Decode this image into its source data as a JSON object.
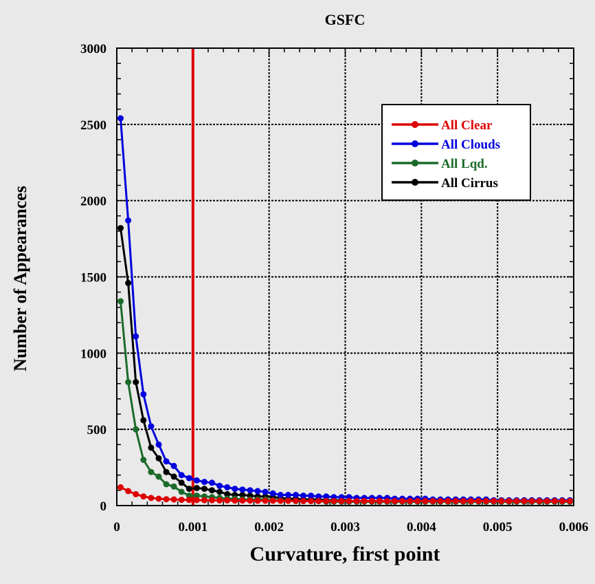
{
  "chart_data": {
    "type": "line",
    "title": "GSFC",
    "xlabel": "Curvature, first point",
    "ylabel": "Number of Appearances",
    "xlim": [
      0,
      0.006
    ],
    "ylim": [
      0,
      3000
    ],
    "x_ticks": [
      "0",
      "0.001",
      "0.002",
      "0.003",
      "0.004",
      "0.005",
      "0.006"
    ],
    "y_ticks": [
      "0",
      "500",
      "1000",
      "1500",
      "2000",
      "2500",
      "3000"
    ],
    "grid": true,
    "legend_position": "top-right",
    "threshold": {
      "x": 0.001,
      "color": "#dd0000"
    },
    "x": [
      5e-05,
      0.00015,
      0.00025,
      0.00035,
      0.00045,
      0.00055,
      0.00065,
      0.00075,
      0.00085,
      0.00095,
      0.00105,
      0.00115,
      0.00125,
      0.00135,
      0.00145,
      0.00155,
      0.00165,
      0.00175,
      0.00185,
      0.00195,
      0.00205,
      0.00215,
      0.00225,
      0.00235,
      0.00245,
      0.00255,
      0.00265,
      0.00275,
      0.00285,
      0.00295,
      0.00305,
      0.00315,
      0.00325,
      0.00335,
      0.00345,
      0.00355,
      0.00365,
      0.00375,
      0.00385,
      0.00395,
      0.00405,
      0.00415,
      0.00425,
      0.00435,
      0.00445,
      0.00455,
      0.00465,
      0.00475,
      0.00485,
      0.00495,
      0.00505,
      0.00515,
      0.00525,
      0.00535,
      0.00545,
      0.00555,
      0.00565,
      0.00575,
      0.00585,
      0.00595
    ],
    "series": [
      {
        "name": "All Clear",
        "color": "#dd0000",
        "values": [
          120,
          95,
          75,
          60,
          50,
          45,
          42,
          40,
          38,
          37,
          36,
          35,
          35,
          34,
          34,
          33,
          33,
          33,
          32,
          32,
          32,
          31,
          31,
          31,
          30,
          30,
          30,
          30,
          30,
          30,
          30,
          30,
          30,
          30,
          30,
          30,
          30,
          30,
          30,
          30,
          30,
          30,
          30,
          30,
          30,
          30,
          30,
          30,
          30,
          30,
          30,
          30,
          30,
          30,
          30,
          30,
          30,
          30,
          30,
          30
        ]
      },
      {
        "name": "All Clouds",
        "color": "#0000dd",
        "values": [
          2540,
          1870,
          1110,
          730,
          520,
          400,
          290,
          260,
          200,
          180,
          165,
          155,
          150,
          130,
          120,
          110,
          105,
          100,
          95,
          90,
          80,
          70,
          70,
          70,
          65,
          65,
          60,
          60,
          55,
          55,
          55,
          50,
          50,
          50,
          50,
          50,
          45,
          45,
          45,
          45,
          45,
          40,
          40,
          40,
          40,
          40,
          40,
          40,
          40,
          35,
          35,
          35,
          35,
          35,
          35,
          35,
          35,
          35,
          35,
          35
        ]
      },
      {
        "name": "All Lqd.",
        "color": "#1a6b2a",
        "values": [
          1340,
          810,
          500,
          300,
          220,
          190,
          140,
          125,
          90,
          65,
          65,
          60,
          55,
          50,
          45,
          45,
          40,
          40,
          40,
          40,
          35,
          35,
          35,
          30,
          30,
          30,
          30,
          25,
          25,
          25,
          25,
          25,
          25,
          25,
          25,
          25,
          25,
          25,
          25,
          25,
          25,
          25,
          25,
          25,
          25,
          25,
          25,
          25,
          25,
          25,
          25,
          25,
          25,
          25,
          25,
          25,
          25,
          25,
          25,
          25
        ]
      },
      {
        "name": "All Cirrus",
        "color": "#000000",
        "values": [
          1820,
          1460,
          810,
          560,
          380,
          310,
          220,
          190,
          150,
          110,
          115,
          110,
          100,
          90,
          75,
          70,
          70,
          65,
          60,
          60,
          55,
          50,
          45,
          45,
          40,
          40,
          40,
          35,
          35,
          35,
          30,
          30,
          30,
          30,
          30,
          30,
          30,
          30,
          30,
          30,
          30,
          30,
          30,
          30,
          30,
          30,
          30,
          30,
          30,
          30,
          30,
          30,
          30,
          30,
          30,
          30,
          30,
          30,
          30,
          30
        ]
      }
    ]
  }
}
